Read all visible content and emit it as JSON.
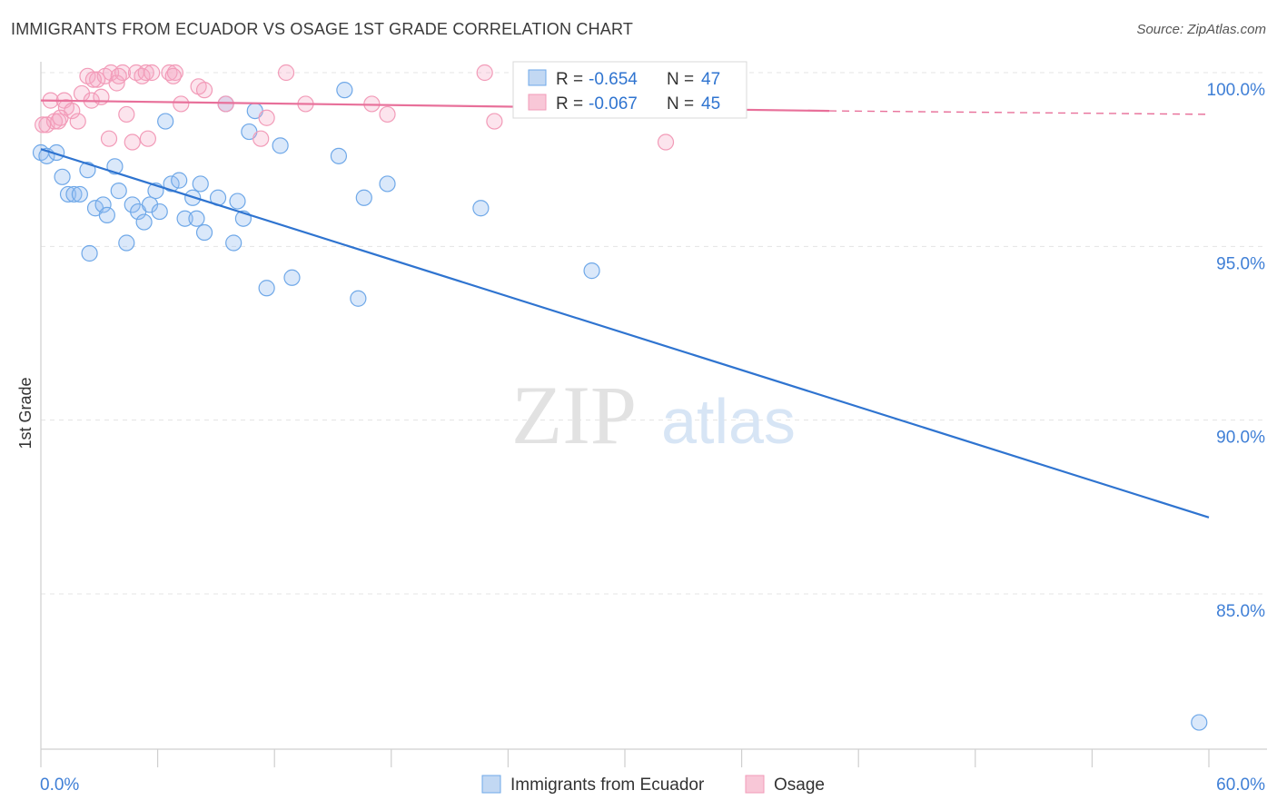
{
  "title": "IMMIGRANTS FROM ECUADOR VS OSAGE 1ST GRADE CORRELATION CHART",
  "source": "Source: ZipAtlas.com",
  "watermark": {
    "zip": "ZIP",
    "atlas": "atlas"
  },
  "chart_data": {
    "type": "scatter",
    "xlabel": "",
    "ylabel": "1st Grade",
    "xlim": [
      0,
      60
    ],
    "ylim": [
      80.5,
      101.0
    ],
    "x_tick_labels": [
      "0.0%",
      "60.0%"
    ],
    "y_ticks": [
      100,
      95,
      90,
      85
    ],
    "y_tick_labels": [
      "100.0%",
      "95.0%",
      "90.0%",
      "85.0%"
    ],
    "legend_position": "bottom",
    "stats_box": [
      {
        "r_label": "R = ",
        "r_value": "-0.654",
        "n_label": "N = ",
        "n_value": "47"
      },
      {
        "r_label": "R = ",
        "r_value": "-0.067",
        "n_label": "N = ",
        "n_value": "45"
      }
    ],
    "series": [
      {
        "name": "Immigrants from Ecuador",
        "color": "#6fa8e8",
        "line_color": "#2f74d0",
        "trend": {
          "x0": 0.0,
          "y0": 97.8,
          "x1": 60.0,
          "y1": 87.2
        },
        "points": [
          [
            0.0,
            97.7
          ],
          [
            0.3,
            97.6
          ],
          [
            0.8,
            97.7
          ],
          [
            1.1,
            97.0
          ],
          [
            1.4,
            96.5
          ],
          [
            1.7,
            96.5
          ],
          [
            2.0,
            96.5
          ],
          [
            2.4,
            97.2
          ],
          [
            2.5,
            94.8
          ],
          [
            2.8,
            96.1
          ],
          [
            3.2,
            96.2
          ],
          [
            3.4,
            95.9
          ],
          [
            3.8,
            97.3
          ],
          [
            4.0,
            96.6
          ],
          [
            4.4,
            95.1
          ],
          [
            4.7,
            96.2
          ],
          [
            5.0,
            96.0
          ],
          [
            5.3,
            95.7
          ],
          [
            5.6,
            96.2
          ],
          [
            5.9,
            96.6
          ],
          [
            6.1,
            96.0
          ],
          [
            6.4,
            98.6
          ],
          [
            6.7,
            96.8
          ],
          [
            7.1,
            96.9
          ],
          [
            7.4,
            95.8
          ],
          [
            7.8,
            96.4
          ],
          [
            8.0,
            95.8
          ],
          [
            8.2,
            96.8
          ],
          [
            8.4,
            95.4
          ],
          [
            9.1,
            96.4
          ],
          [
            9.5,
            99.1
          ],
          [
            9.9,
            95.1
          ],
          [
            10.1,
            96.3
          ],
          [
            10.4,
            95.8
          ],
          [
            10.7,
            98.3
          ],
          [
            11.0,
            98.9
          ],
          [
            11.6,
            93.8
          ],
          [
            12.3,
            97.9
          ],
          [
            12.9,
            94.1
          ],
          [
            15.3,
            97.6
          ],
          [
            15.6,
            99.5
          ],
          [
            16.3,
            93.5
          ],
          [
            16.6,
            96.4
          ],
          [
            17.8,
            96.8
          ],
          [
            22.6,
            96.1
          ],
          [
            28.3,
            94.3
          ],
          [
            59.5,
            81.3
          ]
        ]
      },
      {
        "name": "Osage",
        "color": "#f29bb8",
        "line_color": "#e8709a",
        "trend": {
          "x0": 0.0,
          "y0": 99.2,
          "x1": 40.5,
          "y1": 98.9
        },
        "trend_dashed": {
          "x0": 40.5,
          "y0": 98.9,
          "x1": 60.0,
          "y1": 98.8
        },
        "points": [
          [
            0.3,
            98.5
          ],
          [
            0.5,
            99.2
          ],
          [
            0.7,
            98.6
          ],
          [
            0.9,
            98.6
          ],
          [
            1.2,
            99.2
          ],
          [
            1.3,
            99.0
          ],
          [
            1.6,
            98.9
          ],
          [
            1.9,
            98.6
          ],
          [
            2.1,
            99.4
          ],
          [
            2.4,
            99.9
          ],
          [
            2.6,
            99.2
          ],
          [
            2.9,
            99.8
          ],
          [
            3.1,
            99.3
          ],
          [
            3.3,
            99.9
          ],
          [
            3.5,
            98.1
          ],
          [
            3.6,
            100.0
          ],
          [
            3.9,
            99.7
          ],
          [
            4.2,
            100.0
          ],
          [
            4.4,
            98.8
          ],
          [
            4.7,
            98.0
          ],
          [
            4.9,
            100.0
          ],
          [
            5.2,
            99.9
          ],
          [
            5.4,
            100.0
          ],
          [
            5.5,
            98.1
          ],
          [
            5.7,
            100.0
          ],
          [
            6.6,
            100.0
          ],
          [
            6.9,
            100.0
          ],
          [
            7.2,
            99.1
          ],
          [
            8.1,
            99.6
          ],
          [
            8.4,
            99.5
          ],
          [
            9.5,
            99.1
          ],
          [
            11.3,
            98.1
          ],
          [
            11.6,
            98.7
          ],
          [
            12.6,
            100.0
          ],
          [
            13.6,
            99.1
          ],
          [
            17.0,
            99.1
          ],
          [
            17.8,
            98.8
          ],
          [
            22.8,
            100.0
          ],
          [
            23.3,
            98.6
          ],
          [
            32.1,
            98.0
          ],
          [
            0.1,
            98.5
          ],
          [
            1.0,
            98.7
          ],
          [
            2.7,
            99.8
          ],
          [
            4.0,
            99.9
          ],
          [
            6.8,
            99.9
          ]
        ]
      }
    ]
  }
}
